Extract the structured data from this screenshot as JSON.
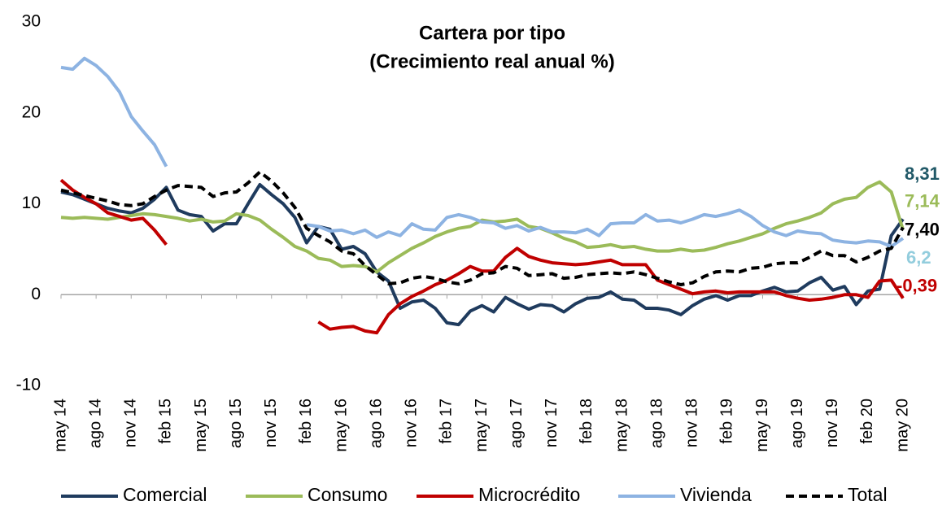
{
  "chart_data": {
    "type": "line",
    "title": "Cartera por tipo",
    "subtitle": "(Crecimiento real anual %)",
    "categories": [
      "may 14",
      null,
      null,
      "ago 14",
      null,
      null,
      "nov 14",
      null,
      null,
      "feb 15",
      null,
      null,
      "may 15",
      null,
      null,
      "ago 15",
      null,
      null,
      "nov 15",
      null,
      null,
      "feb 16",
      null,
      null,
      "may 16",
      null,
      null,
      "ago 16",
      null,
      null,
      "nov 16",
      null,
      null,
      "feb 17",
      null,
      null,
      "may 17",
      null,
      null,
      "ago 17",
      null,
      null,
      "nov 17",
      null,
      null,
      "feb 18",
      null,
      null,
      "may 18",
      null,
      null,
      "ago 18",
      null,
      null,
      "nov 18",
      null,
      null,
      "feb 19",
      null,
      null,
      "may 19",
      null,
      null,
      "ago 19",
      null,
      null,
      "nov 19",
      null,
      null,
      "feb 20",
      null,
      null,
      "may 20"
    ],
    "ylim": [
      -10,
      30
    ],
    "yticks": [
      -10,
      0,
      10,
      20,
      30
    ],
    "grid": false,
    "legend": "bottom",
    "series": [
      {
        "name": "Comercial",
        "color": "#1f3b5e",
        "label_color": "#215968",
        "dash": false,
        "values": [
          11.3,
          11,
          10.5,
          10,
          9.5,
          9.2,
          9,
          9.5,
          10.5,
          11.8,
          9.3,
          8.8,
          8.6,
          7,
          7.8,
          7.8,
          10,
          12.1,
          11,
          10,
          8.5,
          5.7,
          7.5,
          7.2,
          5,
          5.3,
          4.5,
          2.5,
          1.5,
          -1.5,
          -0.8,
          -0.6,
          -1.5,
          -3.1,
          -3.3,
          -1.8,
          -1.2,
          -1.9,
          -0.3,
          -1,
          -1.6,
          -1.1,
          -1.2,
          -1.9,
          -1,
          -0.4,
          -0.3,
          0.3,
          -0.5,
          -0.6,
          -1.5,
          -1.5,
          -1.7,
          -2.2,
          -1.2,
          -0.5,
          -0.1,
          -0.6,
          -0.1,
          -0.1,
          0.4,
          0.8,
          0.3,
          0.4,
          1.3,
          1.9,
          0.5,
          0.9,
          -1.1,
          0.4,
          0.6,
          6.5,
          8.31
        ],
        "value_labels": [
          null,
          null,
          null,
          null,
          null,
          null,
          null,
          null,
          null,
          null,
          null,
          null,
          null,
          null,
          null,
          null,
          null,
          null,
          null,
          null,
          null,
          null,
          null,
          null,
          null,
          null,
          null,
          null,
          null,
          null,
          null,
          null,
          null,
          null,
          null,
          null,
          null,
          null,
          null,
          null,
          null,
          null,
          null,
          null,
          null,
          null,
          null,
          null,
          null,
          null,
          null,
          null,
          null,
          null,
          null,
          null,
          null,
          null,
          null,
          null,
          null,
          null,
          null,
          null,
          null,
          null,
          null,
          null,
          null,
          null,
          null,
          null,
          "8,31"
        ]
      },
      {
        "name": "Consumo",
        "color": "#9bbb59",
        "label_color": "#9bbb59",
        "dash": false,
        "values": [
          8.5,
          8.4,
          8.5,
          8.4,
          8.3,
          8.5,
          8.7,
          8.9,
          8.8,
          8.6,
          8.4,
          8.1,
          8.3,
          8,
          8.1,
          8.9,
          8.7,
          8.2,
          7.2,
          6.3,
          5.3,
          4.8,
          4,
          3.8,
          3.1,
          3.2,
          3.1,
          2.5,
          3.5,
          4.3,
          5.1,
          5.7,
          6.4,
          6.9,
          7.3,
          7.5,
          8.2,
          8,
          8.1,
          8.3,
          7.5,
          7.3,
          6.8,
          6.2,
          5.8,
          5.2,
          5.3,
          5.5,
          5.2,
          5.3,
          5,
          4.8,
          4.8,
          5,
          4.8,
          4.9,
          5.2,
          5.6,
          5.9,
          6.3,
          6.7,
          7.3,
          7.8,
          8.1,
          8.5,
          9,
          10,
          10.5,
          10.7,
          11.8,
          12.4,
          11.3,
          7.14
        ],
        "value_labels": [
          null,
          null,
          null,
          null,
          null,
          null,
          null,
          null,
          null,
          null,
          null,
          null,
          null,
          null,
          null,
          null,
          null,
          null,
          null,
          null,
          null,
          null,
          null,
          null,
          null,
          null,
          null,
          null,
          null,
          null,
          null,
          null,
          null,
          null,
          null,
          null,
          null,
          null,
          null,
          null,
          null,
          null,
          null,
          null,
          null,
          null,
          null,
          null,
          null,
          null,
          null,
          null,
          null,
          null,
          null,
          null,
          null,
          null,
          null,
          null,
          null,
          null,
          null,
          null,
          null,
          null,
          null,
          null,
          null,
          null,
          null,
          null,
          "7,14"
        ]
      },
      {
        "name": "Microcrédito",
        "color": "#c00000",
        "label_color": "#c00000",
        "dash": false,
        "values": [
          12.6,
          11.5,
          10.7,
          10,
          9,
          8.6,
          8.2,
          8.4,
          7.1,
          5.5,
          null,
          null,
          null,
          null,
          null,
          null,
          null,
          null,
          null,
          null,
          null,
          null,
          -3,
          -3.8,
          -3.6,
          -3.5,
          -4,
          -4.2,
          -2.2,
          -1,
          -0.2,
          0.4,
          1.1,
          1.6,
          2.3,
          3.1,
          2.6,
          2.6,
          4.1,
          5.1,
          4.2,
          3.8,
          3.5,
          3.4,
          3.3,
          3.4,
          3.6,
          3.8,
          3.3,
          3.3,
          3.3,
          1.6,
          1.1,
          0.6,
          0.1,
          0.3,
          0.4,
          0.2,
          0.3,
          0.3,
          0.3,
          0.3,
          -0.1,
          -0.4,
          -0.6,
          -0.5,
          -0.3,
          0,
          0,
          -0.3,
          1.5,
          1.6,
          -0.39
        ],
        "value_labels": [
          null,
          null,
          null,
          null,
          null,
          null,
          null,
          null,
          null,
          null,
          null,
          null,
          null,
          null,
          null,
          null,
          null,
          null,
          null,
          null,
          null,
          null,
          null,
          null,
          null,
          null,
          null,
          null,
          null,
          null,
          null,
          null,
          null,
          null,
          null,
          null,
          null,
          null,
          null,
          null,
          null,
          null,
          null,
          null,
          null,
          null,
          null,
          null,
          null,
          null,
          null,
          null,
          null,
          null,
          null,
          null,
          null,
          null,
          null,
          null,
          null,
          null,
          null,
          null,
          null,
          null,
          null,
          null,
          null,
          null,
          null,
          null,
          "-0,39"
        ]
      },
      {
        "name": "Vivienda",
        "color": "#8db3e2",
        "label_color": "#93cddd",
        "dash": false,
        "values": [
          25,
          24.8,
          26,
          25.2,
          24,
          22.3,
          19.6,
          18,
          16.5,
          14.1,
          null,
          null,
          null,
          null,
          null,
          null,
          null,
          null,
          null,
          null,
          null,
          7.7,
          7.5,
          7,
          7.1,
          6.7,
          7.1,
          6.3,
          6.9,
          6.5,
          7.8,
          7.2,
          7.1,
          8.5,
          8.8,
          8.5,
          8,
          7.9,
          7.3,
          7.6,
          7,
          7.4,
          6.9,
          6.9,
          6.8,
          7.2,
          6.5,
          7.8,
          7.9,
          7.9,
          8.8,
          8.1,
          8.2,
          7.9,
          8.3,
          8.8,
          8.6,
          8.9,
          9.3,
          8.6,
          7.6,
          6.9,
          6.5,
          7,
          6.8,
          6.7,
          6,
          5.8,
          5.7,
          5.9,
          5.8,
          5.3,
          6.2
        ],
        "value_labels": [
          null,
          null,
          null,
          null,
          null,
          null,
          null,
          null,
          null,
          null,
          null,
          null,
          null,
          null,
          null,
          null,
          null,
          null,
          null,
          null,
          null,
          null,
          null,
          null,
          null,
          null,
          null,
          null,
          null,
          null,
          null,
          null,
          null,
          null,
          null,
          null,
          null,
          null,
          null,
          null,
          null,
          null,
          null,
          null,
          null,
          null,
          null,
          null,
          null,
          null,
          null,
          null,
          null,
          null,
          null,
          null,
          null,
          null,
          null,
          null,
          null,
          null,
          null,
          null,
          null,
          null,
          null,
          null,
          null,
          null,
          null,
          null,
          "6,2"
        ]
      },
      {
        "name": "Total",
        "color": "#000000",
        "label_color": "#000000",
        "dash": true,
        "values": [
          11.5,
          11.2,
          10.9,
          10.6,
          10.3,
          9.9,
          9.8,
          10,
          10.8,
          11.5,
          12,
          11.9,
          11.8,
          10.8,
          11.2,
          11.3,
          12.3,
          13.5,
          12.5,
          11.2,
          9.6,
          7.3,
          6.5,
          5.8,
          4.8,
          4.5,
          3.2,
          2.2,
          1.2,
          1.3,
          1.8,
          2,
          1.8,
          1.4,
          1.2,
          1.6,
          2.3,
          2.4,
          3.1,
          2.9,
          2.1,
          2.2,
          2.3,
          1.8,
          1.9,
          2.2,
          2.3,
          2.4,
          2.3,
          2.5,
          2.2,
          1.8,
          1.4,
          1.1,
          1.3,
          2,
          2.5,
          2.6,
          2.5,
          2.9,
          3,
          3.4,
          3.5,
          3.5,
          4.1,
          4.8,
          4.3,
          4.3,
          3.6,
          4.1,
          4.8,
          5.1,
          7.4
        ],
        "value_labels": [
          null,
          null,
          null,
          null,
          null,
          null,
          null,
          null,
          null,
          null,
          null,
          null,
          null,
          null,
          null,
          null,
          null,
          null,
          null,
          null,
          null,
          null,
          null,
          null,
          null,
          null,
          null,
          null,
          null,
          null,
          null,
          null,
          null,
          null,
          null,
          null,
          null,
          null,
          null,
          null,
          null,
          null,
          null,
          null,
          null,
          null,
          null,
          null,
          null,
          null,
          null,
          null,
          null,
          null,
          null,
          null,
          null,
          null,
          null,
          null,
          null,
          null,
          null,
          null,
          null,
          null,
          null,
          null,
          null,
          null,
          null,
          null,
          "7,40"
        ]
      }
    ]
  }
}
